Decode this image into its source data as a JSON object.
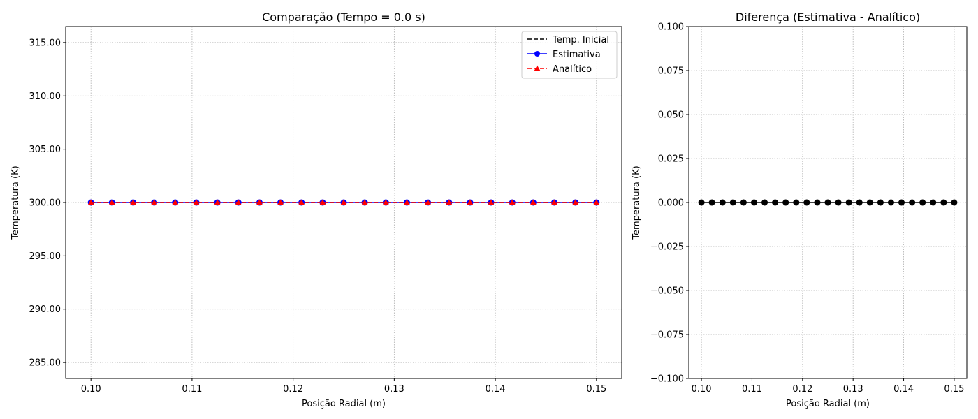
{
  "colors": {
    "initial": "#000000",
    "estimate": "#0000ff",
    "analytic": "#ff0000",
    "difference": "#000000",
    "grid": "#b0b0b0",
    "axis": "#000000",
    "legend_border": "#cccccc"
  },
  "chart_data": [
    {
      "type": "line",
      "title": "Comparação (Tempo = 0.0 s)",
      "xlabel": "Posição Radial (m)",
      "ylabel": "Temperatura (K)",
      "xlim": [
        0.0975,
        0.1525
      ],
      "ylim": [
        283.5,
        316.5
      ],
      "xticks": [
        0.1,
        0.11,
        0.12,
        0.13,
        0.14,
        0.15
      ],
      "xtick_labels": [
        "0.10",
        "0.11",
        "0.12",
        "0.13",
        "0.14",
        "0.15"
      ],
      "yticks": [
        285,
        290,
        295,
        300,
        305,
        310,
        315
      ],
      "ytick_labels": [
        "285.00",
        "290.00",
        "295.00",
        "300.00",
        "305.00",
        "310.00",
        "315.00"
      ],
      "grid": true,
      "legend_position": "top-right",
      "x": [
        0.1,
        0.10208,
        0.10417,
        0.10625,
        0.10833,
        0.11042,
        0.1125,
        0.11458,
        0.11667,
        0.11875,
        0.12083,
        0.12292,
        0.125,
        0.12708,
        0.12917,
        0.13125,
        0.13333,
        0.13542,
        0.1375,
        0.13958,
        0.14167,
        0.14375,
        0.14583,
        0.14792,
        0.15
      ],
      "series": [
        {
          "name": "Temp. Inicial",
          "style": "dashed",
          "marker": "none",
          "values": [
            300,
            300,
            300,
            300,
            300,
            300,
            300,
            300,
            300,
            300,
            300,
            300,
            300,
            300,
            300,
            300,
            300,
            300,
            300,
            300,
            300,
            300,
            300,
            300,
            300
          ]
        },
        {
          "name": "Estimativa",
          "style": "solid",
          "marker": "circle",
          "values": [
            300,
            300,
            300,
            300,
            300,
            300,
            300,
            300,
            300,
            300,
            300,
            300,
            300,
            300,
            300,
            300,
            300,
            300,
            300,
            300,
            300,
            300,
            300,
            300,
            300
          ]
        },
        {
          "name": "Analítico",
          "style": "dashed",
          "marker": "triangle",
          "values": [
            300,
            300,
            300,
            300,
            300,
            300,
            300,
            300,
            300,
            300,
            300,
            300,
            300,
            300,
            300,
            300,
            300,
            300,
            300,
            300,
            300,
            300,
            300,
            300,
            300
          ]
        }
      ]
    },
    {
      "type": "line",
      "title": "Diferença (Estimativa - Analítico)",
      "xlabel": "Posição Radial (m)",
      "ylabel": "Temperatura (K)",
      "xlim": [
        0.0975,
        0.1525
      ],
      "ylim": [
        -0.1,
        0.1
      ],
      "xticks": [
        0.1,
        0.11,
        0.12,
        0.13,
        0.14,
        0.15
      ],
      "xtick_labels": [
        "0.10",
        "0.11",
        "0.12",
        "0.13",
        "0.14",
        "0.15"
      ],
      "yticks": [
        -0.1,
        -0.075,
        -0.05,
        -0.025,
        0,
        0.025,
        0.05,
        0.075,
        0.1
      ],
      "ytick_labels": [
        "−0.100",
        "−0.075",
        "−0.050",
        "−0.025",
        "0.000",
        "0.025",
        "0.050",
        "0.075",
        "0.100"
      ],
      "grid": true,
      "x": [
        0.1,
        0.10208,
        0.10417,
        0.10625,
        0.10833,
        0.11042,
        0.1125,
        0.11458,
        0.11667,
        0.11875,
        0.12083,
        0.12292,
        0.125,
        0.12708,
        0.12917,
        0.13125,
        0.13333,
        0.13542,
        0.1375,
        0.13958,
        0.14167,
        0.14375,
        0.14583,
        0.14792,
        0.15
      ],
      "series": [
        {
          "style": "solid",
          "marker": "circle",
          "values": [
            0,
            0,
            0,
            0,
            0,
            0,
            0,
            0,
            0,
            0,
            0,
            0,
            0,
            0,
            0,
            0,
            0,
            0,
            0,
            0,
            0,
            0,
            0,
            0,
            0
          ]
        }
      ]
    }
  ]
}
